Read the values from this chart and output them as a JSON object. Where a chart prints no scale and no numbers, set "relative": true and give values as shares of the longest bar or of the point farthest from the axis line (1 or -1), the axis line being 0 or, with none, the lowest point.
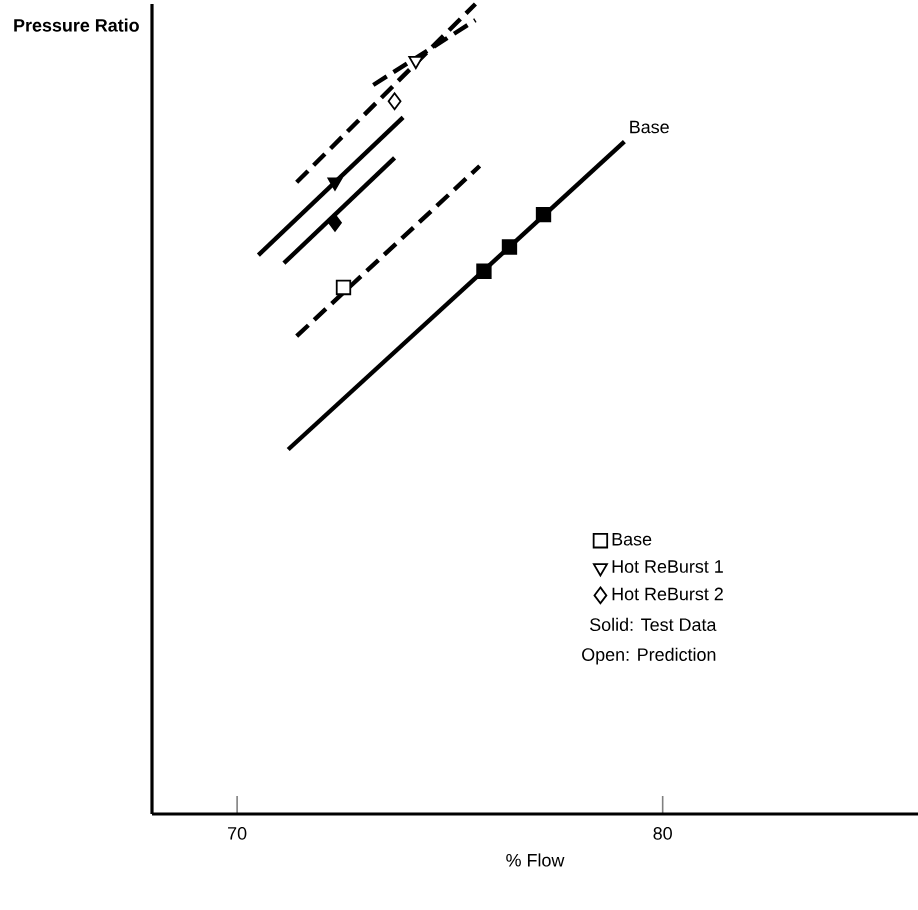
{
  "chart_data": {
    "type": "line",
    "xlabel": "% Flow",
    "ylabel": "Pressure Ratio",
    "relative": true,
    "xlim": [
      68,
      86
    ],
    "xticks": [
      70,
      80
    ],
    "legend": "bottom right",
    "series": [
      {
        "line_style": "dashed",
        "color": "#000000",
        "x": [
          71.4,
          75.7
        ],
        "values": [
          0.59,
          0.8
        ]
      },
      {
        "line_style": "solid",
        "color": "#000000",
        "x": [
          71.2,
          79.1
        ],
        "values": [
          0.45,
          0.83
        ]
      },
      {
        "line_style": "solid",
        "color": "#000000",
        "x": [
          70.5,
          73.9
        ],
        "values": [
          0.69,
          0.86
        ]
      },
      {
        "line_style": "solid",
        "color": "#000000",
        "x": [
          71.1,
          73.7
        ],
        "values": [
          0.68,
          0.81
        ]
      },
      {
        "line_style": "dashed",
        "color": "#000000",
        "x": [
          71.4,
          75.6
        ],
        "values": [
          0.78,
          1.0
        ]
      },
      {
        "line_style": "dashed",
        "color": "#000000",
        "x": [
          73.2,
          75.6
        ],
        "values": [
          0.9,
          0.98
        ]
      },
      {
        "type": "scatter",
        "name": "Base",
        "marker": "square",
        "color": "#ffffff",
        "x": [
          72.5
        ],
        "values": [
          0.65
        ]
      },
      {
        "type": "scatter",
        "name": "Hot ReBurst 1",
        "marker": "triangle",
        "color": "#ffffff",
        "x": [
          74.2
        ],
        "values": [
          0.93
        ]
      },
      {
        "type": "scatter",
        "name": "Hot ReBurst 2",
        "marker": "diamond",
        "color": "#ffffff",
        "x": [
          73.7
        ],
        "values": [
          0.88
        ]
      },
      {
        "type": "scatter",
        "marker": "square",
        "color": "#000000",
        "x": [
          75.8,
          76.4,
          77.2
        ],
        "values": [
          0.67,
          0.7,
          0.74
        ]
      },
      {
        "type": "scatter",
        "marker": "triangle",
        "color": "#000000",
        "x": [
          72.3
        ],
        "values": [
          0.78
        ]
      },
      {
        "type": "scatter",
        "marker": "diamond",
        "color": "#000000",
        "x": [
          72.3
        ],
        "values": [
          0.73
        ]
      }
    ],
    "annotations": [
      {
        "text": "Base",
        "x": 79.1,
        "y": 0.83
      },
      "Solid: Test Data",
      "Open: Prediction"
    ]
  }
}
